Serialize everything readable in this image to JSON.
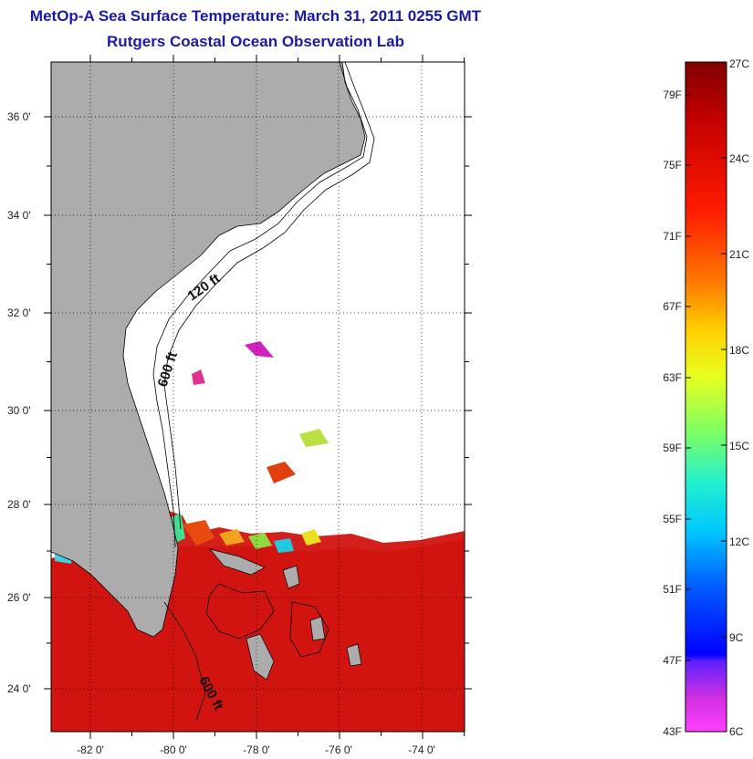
{
  "title": "MetOp-A Sea Surface Temperature:  March 31, 2011 0255 GMT",
  "subtitle": "Rutgers Coastal Ocean Observation Lab",
  "map": {
    "lat_labels": [
      "36 0'",
      "34 0'",
      "32 0'",
      "30 0'",
      "28 0'",
      "26 0'",
      "24 0'"
    ],
    "lon_labels": [
      "-82 0'",
      "-80 0'",
      "-78 0'",
      "-76 0'",
      "-74 0'"
    ],
    "contour_labels": [
      "120 ft",
      "600 ft",
      "600 ft"
    ],
    "colors": {
      "land": "#acacac",
      "warm_sst": "#d21410",
      "no_data": "#ffffff"
    }
  },
  "colorbar": {
    "fahrenheit_labels": [
      "79F",
      "75F",
      "71F",
      "67F",
      "63F",
      "59F",
      "55F",
      "51F",
      "47F",
      "43F"
    ],
    "celsius_labels": [
      "27C",
      "24C",
      "21C",
      "18C",
      "15C",
      "12C",
      "9C",
      "6C"
    ]
  }
}
